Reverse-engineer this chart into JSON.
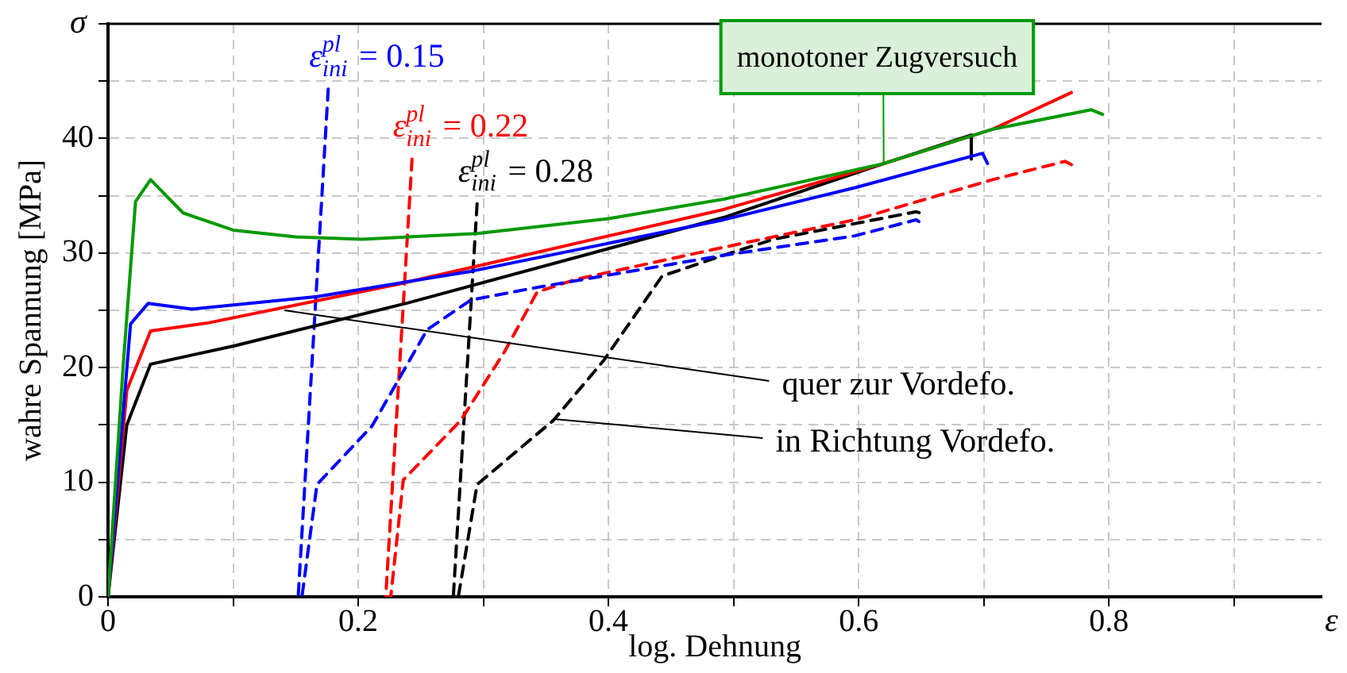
{
  "chart_data": {
    "type": "line",
    "xlabel": "log. Dehnung",
    "ylabel": "wahre Spannung [MPa]",
    "xlim": [
      0,
      0.97
    ],
    "ylim": [
      0,
      50
    ],
    "xticks": [
      0,
      {
        "value": 0.1,
        "label": null
      },
      0.2,
      {
        "value": 0.3,
        "label": null
      },
      0.4,
      {
        "value": 0.5,
        "label": null
      },
      0.6,
      {
        "value": 0.7,
        "label": null
      },
      0.8,
      {
        "value": 0.9,
        "label": null
      }
    ],
    "yticks": [
      0,
      {
        "value": 5,
        "label": null
      },
      10,
      {
        "value": 15,
        "label": null
      },
      20,
      {
        "value": 25,
        "label": null
      },
      30,
      {
        "value": 35,
        "label": null
      },
      40,
      {
        "value": 45,
        "label": null
      },
      {
        "value": 50,
        "label": null
      }
    ],
    "grid": true,
    "legend": false,
    "marker": "none",
    "series": [
      {
        "name": "monotoner Zugversuch",
        "color": "#009900",
        "line_style": "solid",
        "x": [
          0,
          0.012,
          0.022,
          0.034,
          0.06,
          0.1,
          0.15,
          0.203,
          0.295,
          0.4,
          0.492,
          0.62,
          0.707,
          0.786,
          0.795
        ],
        "values": [
          0,
          20,
          34.5,
          36.4,
          33.5,
          32,
          31.4,
          31.2,
          31.7,
          33,
          34.7,
          37.8,
          40.8,
          42.5,
          42.1
        ]
      },
      {
        "color": "#0000ff",
        "line_style": "solid",
        "x": [
          0,
          0.018,
          0.032,
          0.067,
          0.167,
          0.29,
          0.492,
          0.597,
          0.699,
          0.703
        ],
        "values": [
          0,
          23.8,
          25.6,
          25.1,
          26.2,
          28.4,
          32.9,
          35.7,
          38.7,
          37.8
        ]
      },
      {
        "color": "#ff0000",
        "line_style": "solid",
        "x": [
          0,
          0.015,
          0.034,
          0.08,
          0.233,
          0.492,
          0.62,
          0.707,
          0.77
        ],
        "values": [
          0,
          18,
          23.2,
          23.9,
          27.3,
          33.8,
          37.8,
          40.8,
          44
        ]
      },
      {
        "color": "#000000",
        "line_style": "solid",
        "x": [
          0,
          0.015,
          0.034,
          0.101,
          0.238,
          0.492,
          0.62,
          0.69,
          0.69
        ],
        "values": [
          0,
          15,
          20.3,
          21.9,
          25.6,
          33.1,
          37.8,
          40.3,
          38.2
        ]
      },
      {
        "name": "ε$^{pl}$$_{ini}$ = 0.15",
        "color": "#0000ff",
        "line_style": "dashed",
        "x": [
          0.176,
          0.152,
          0.155,
          0.167,
          0.211,
          0.255,
          0.29,
          0.343,
          0.492,
          0.597,
          0.646,
          0.65
        ],
        "values": [
          44.3,
          0,
          0,
          9.8,
          14.9,
          23.3,
          25.9,
          27,
          29.8,
          31.5,
          32.9,
          32.6
        ]
      },
      {
        "name": "ε$^{pl}$$_{ini}$ = 0.22",
        "color": "#ff0000",
        "line_style": "dashed",
        "x": [
          0.243,
          0.222,
          0.226,
          0.236,
          0.282,
          0.317,
          0.343,
          0.374,
          0.492,
          0.597,
          0.707,
          0.765,
          0.77
        ],
        "values": [
          38.2,
          0,
          0,
          10.2,
          15.4,
          21.4,
          26.6,
          27.7,
          30.5,
          32.9,
          36.4,
          38,
          37.7
        ]
      },
      {
        "name": "ε$^{pl}$$_{ini}$ = 0.28",
        "color": "#000000",
        "line_style": "dashed",
        "x": [
          0.295,
          0.276,
          0.28,
          0.295,
          0.356,
          0.396,
          0.443,
          0.492,
          0.532,
          0.646,
          0.652
        ],
        "values": [
          34.3,
          0,
          0,
          9.8,
          15.4,
          20.6,
          28,
          29.8,
          31.2,
          33.6,
          33.4
        ]
      }
    ],
    "annotations": [
      "σ",
      "ε",
      {
        "text": "quer zur Vordefo.",
        "x": 0.141,
        "y": 25
      },
      {
        "text": "in Richtung Vordefo.",
        "x": 0.358,
        "y": 15.5
      }
    ]
  }
}
